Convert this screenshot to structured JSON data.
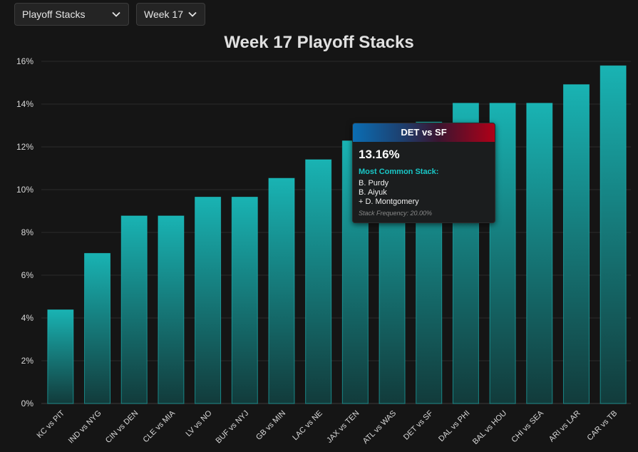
{
  "controls": {
    "stack_type": "Playoff Stacks",
    "week": "Week 17"
  },
  "chart_data": {
    "type": "bar",
    "title": "Week 17 Playoff Stacks",
    "xlabel": "",
    "ylabel": "",
    "ylim": [
      0,
      16
    ],
    "yticks": [
      "0%",
      "2%",
      "4%",
      "6%",
      "8%",
      "10%",
      "12%",
      "14%",
      "16%"
    ],
    "categories": [
      "KC vs PIT",
      "IND vs NYG",
      "CIN vs DEN",
      "CLE vs MIA",
      "LV vs NO",
      "BUF vs NYJ",
      "GB vs MIN",
      "LAC vs NE",
      "JAX vs TEN",
      "ATL vs WAS",
      "DET vs SF",
      "DAL vs PHI",
      "BAL vs HOU",
      "CHI vs SEA",
      "ARI vs LAR",
      "CAR vs TB"
    ],
    "values": [
      4.38,
      7.02,
      8.77,
      8.77,
      9.65,
      9.65,
      10.53,
      11.4,
      12.28,
      12.28,
      13.16,
      14.04,
      14.04,
      14.04,
      14.91,
      15.79
    ],
    "grid": true,
    "bar_color": "#17b6b6"
  },
  "tooltip": {
    "matchup": "DET vs SF",
    "percent": "13.16%",
    "stack_label": "Most Common Stack:",
    "players": [
      "B. Purdy",
      "B. Aiyuk",
      "+ D. Montgomery"
    ],
    "frequency": "Stack Frequency: 20.00%",
    "colors": {
      "left": "#0b6db3",
      "right": "#b00018"
    }
  }
}
